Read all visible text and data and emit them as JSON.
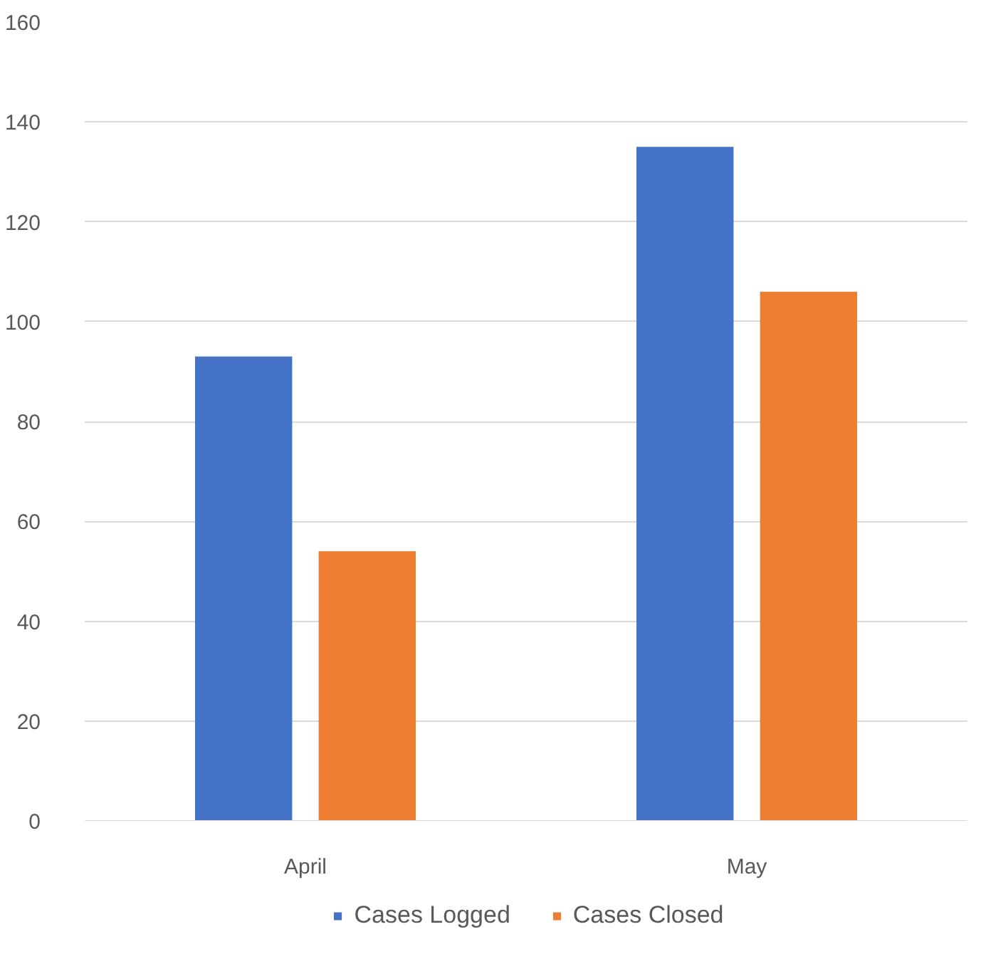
{
  "chart_data": {
    "type": "bar",
    "categories": [
      "April",
      "May"
    ],
    "series": [
      {
        "name": "Cases Logged",
        "color": "#4472c4",
        "values": [
          93,
          135
        ]
      },
      {
        "name": "Cases Closed",
        "color": "#ed7d31",
        "values": [
          54,
          106
        ]
      }
    ],
    "ylim": [
      0,
      160
    ],
    "yticks": [
      0,
      20,
      40,
      60,
      80,
      100,
      120,
      140,
      160
    ],
    "grid": "y",
    "legend": "bottom"
  }
}
